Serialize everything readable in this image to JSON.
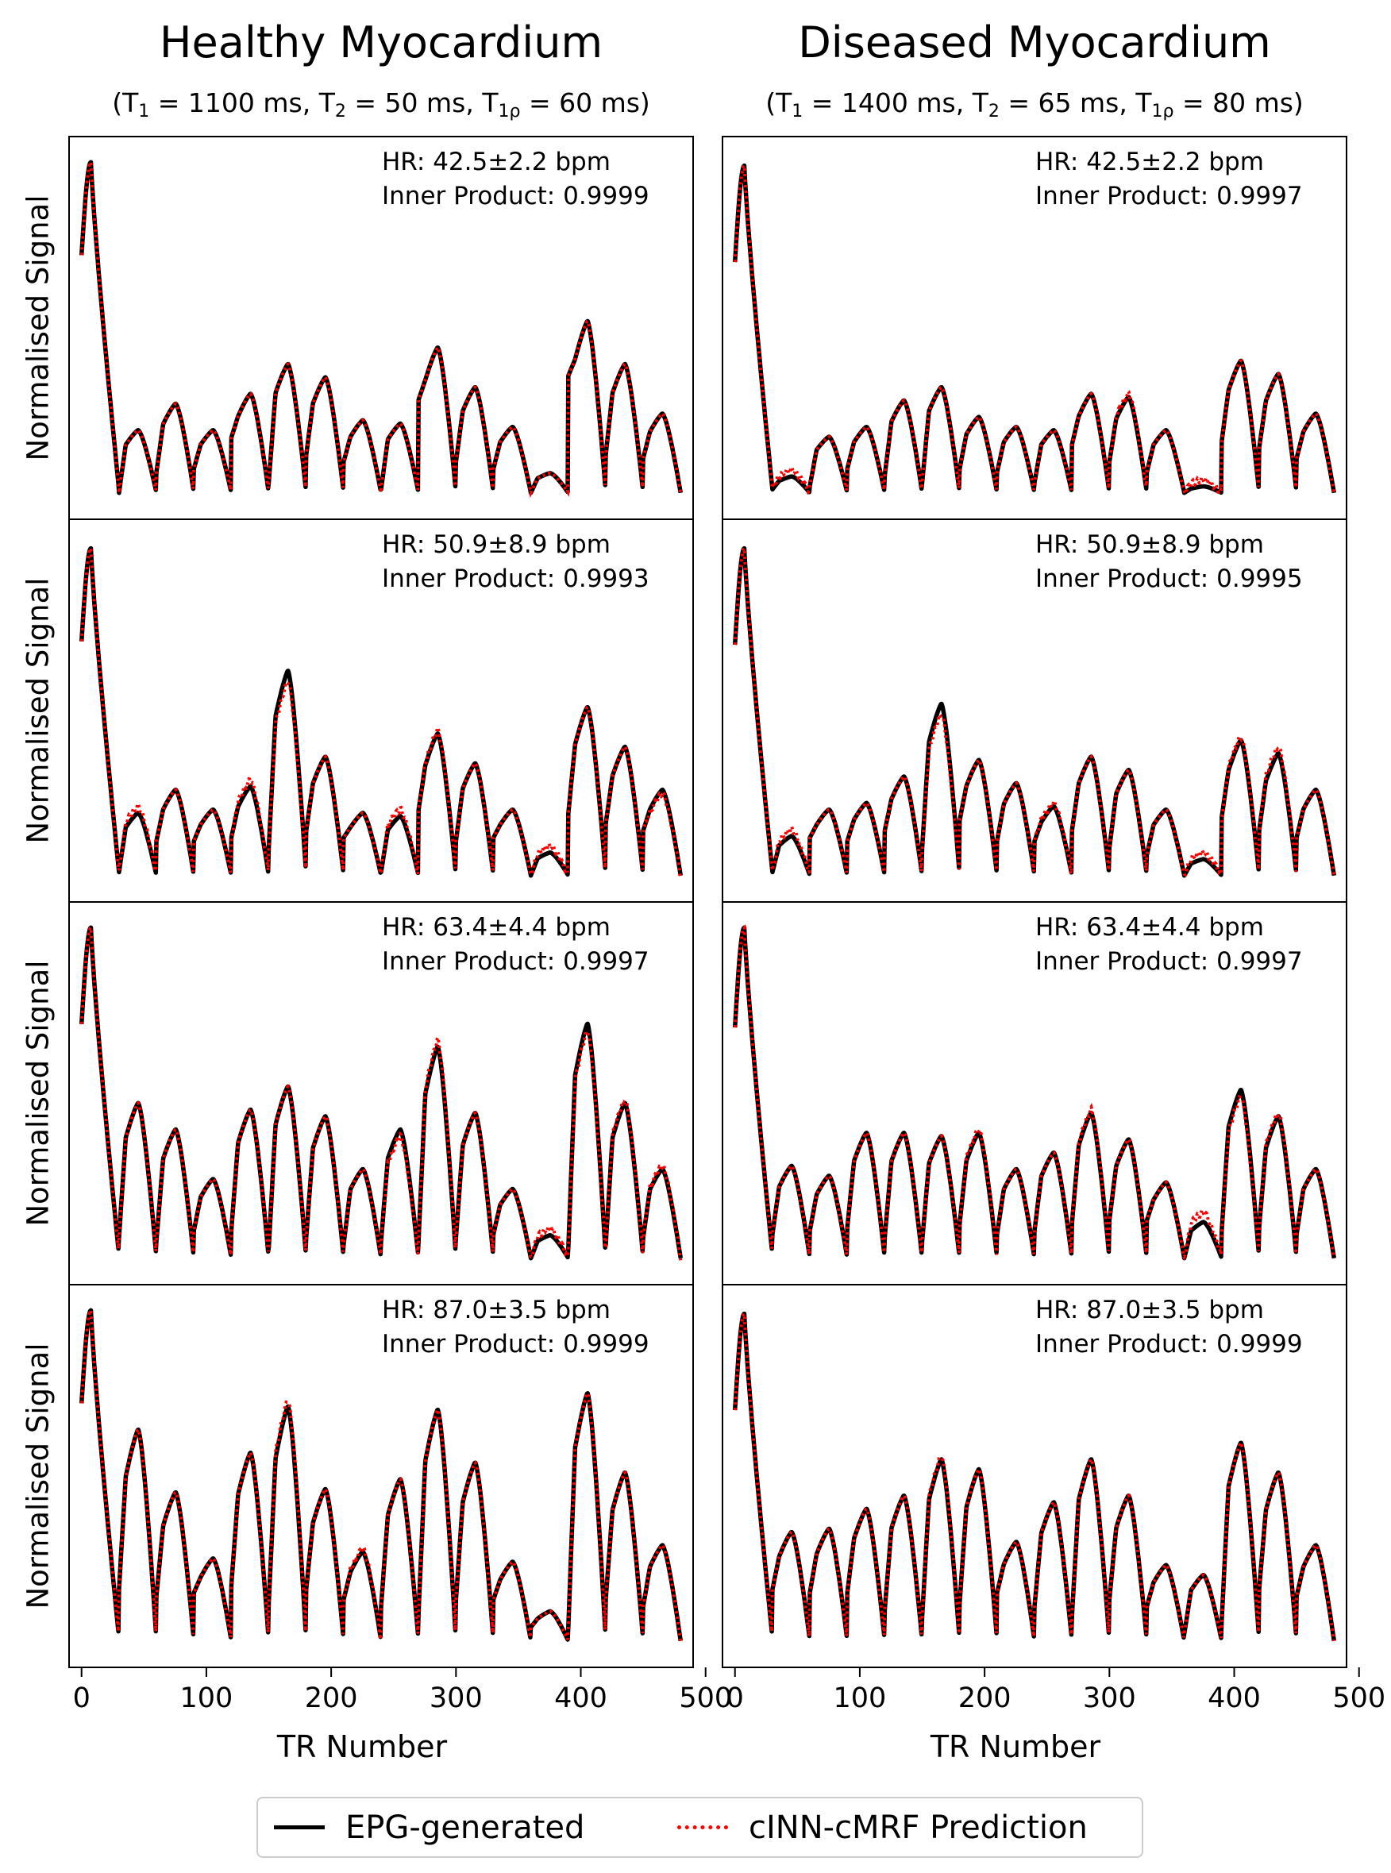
{
  "figure": {
    "columns": [
      {
        "title": "Healthy Myocardium",
        "params": {
          "t1": "1100 ms",
          "t2": "50 ms",
          "t1rho": "60 ms"
        }
      },
      {
        "title": "Diseased Myocardium",
        "params": {
          "t1": "1400 ms",
          "t2": "65 ms",
          "t1rho": "80 ms"
        }
      }
    ],
    "param_labels": {
      "t1": "T",
      "t1_sub": "1",
      "t2": "T",
      "t2_sub": "2",
      "t1rho": "T",
      "t1rho_sub": "1ρ",
      "eq": " = ",
      "open": "(",
      "close": ")",
      "sep": ", "
    }
  },
  "legend": {
    "epg_label": "EPG-generated",
    "cinn_label": "cINN-cMRF Prediction"
  },
  "colors": {
    "epg": "#000000",
    "cinn": "#ff0000",
    "axis": "#000000",
    "legend_border": "#cccccc"
  },
  "chart_data": {
    "type": "line",
    "xlabel": "TR Number",
    "ylabel": "Normalised Signal",
    "xlim": [
      -10,
      490
    ],
    "ylim": [
      0,
      1
    ],
    "xticks": [
      0,
      100,
      200,
      300,
      400,
      500
    ],
    "series_names": [
      "EPG-generated",
      "cINN-cMRF Prediction"
    ],
    "cardiac_cycles": {
      "segment_starts": [
        0,
        30,
        60,
        90,
        120,
        150,
        180,
        210,
        240,
        270,
        300,
        330,
        360,
        390,
        420,
        450
      ],
      "segment_end": 480
    },
    "panels": [
      {
        "row": 0,
        "col": 0,
        "hr": "HR: 42.5±2.2 bpm",
        "inner_product": "Inner Product: 0.9999",
        "seg_peaks": [
          0.97,
          0.2,
          0.28,
          0.2,
          0.31,
          0.4,
          0.36,
          0.23,
          0.22,
          0.45,
          0.33,
          0.21,
          0.07,
          0.53,
          0.4,
          0.25
        ],
        "seg_mins": [
          0.7,
          0.01,
          0.07,
          0.08,
          0.17,
          0.04,
          0.12,
          0.1,
          0.02,
          0.28,
          0.1,
          0.08,
          0.01,
          0.35,
          0.12,
          0.11
        ],
        "pred_dev": [
          0,
          0,
          0,
          0,
          0,
          0,
          0,
          0,
          0,
          0,
          0,
          0,
          0,
          0,
          0,
          0
        ]
      },
      {
        "row": 0,
        "col": 1,
        "hr": "HR: 42.5±2.2 bpm",
        "inner_product": "Inner Product: 0.9997",
        "seg_peaks": [
          0.96,
          0.06,
          0.18,
          0.21,
          0.29,
          0.33,
          0.24,
          0.21,
          0.2,
          0.31,
          0.3,
          0.2,
          0.03,
          0.41,
          0.37,
          0.25
        ],
        "seg_mins": [
          0.68,
          0.02,
          0.03,
          0.08,
          0.06,
          0.04,
          0.08,
          0.07,
          0.04,
          0.15,
          0.1,
          0.07,
          0.01,
          0.16,
          0.14,
          0.11
        ],
        "pred_dev": [
          0,
          0.02,
          0,
          0,
          0,
          0,
          0,
          0,
          0,
          0,
          0.01,
          0,
          0.02,
          0,
          0,
          0
        ]
      },
      {
        "row": 1,
        "col": 0,
        "hr": "HR: 50.9±8.9 bpm",
        "inner_product": "Inner Product: 0.9993",
        "seg_peaks": [
          0.96,
          0.2,
          0.27,
          0.21,
          0.28,
          0.63,
          0.37,
          0.2,
          0.19,
          0.44,
          0.35,
          0.21,
          0.08,
          0.52,
          0.4,
          0.27
        ],
        "seg_mins": [
          0.69,
          0.02,
          0.11,
          0.11,
          0.12,
          0.09,
          0.14,
          0.12,
          0.02,
          0.2,
          0.11,
          0.12,
          0.01,
          0.19,
          0.16,
          0.14
        ],
        "pred_dev": [
          0,
          0.02,
          0,
          0,
          0.02,
          -0.03,
          0,
          0,
          0.02,
          0.01,
          0,
          0,
          0.02,
          0,
          0,
          -0.01
        ]
      },
      {
        "row": 1,
        "col": 1,
        "hr": "HR: 50.9±8.9 bpm",
        "inner_product": "Inner Product: 0.9995",
        "seg_peaks": [
          0.96,
          0.13,
          0.21,
          0.23,
          0.31,
          0.53,
          0.36,
          0.29,
          0.22,
          0.37,
          0.33,
          0.21,
          0.06,
          0.42,
          0.38,
          0.27
        ],
        "seg_mins": [
          0.68,
          0.02,
          0.12,
          0.11,
          0.14,
          0.09,
          0.17,
          0.11,
          0.11,
          0.14,
          0.09,
          0.07,
          0.01,
          0.18,
          0.14,
          0.12
        ],
        "pred_dev": [
          0,
          0.02,
          0,
          0,
          0,
          -0.03,
          0,
          0,
          0.01,
          0,
          0,
          0,
          0.02,
          0.01,
          0.02,
          0
        ]
      },
      {
        "row": 2,
        "col": 0,
        "hr": "HR: 63.4±4.4 bpm",
        "inner_product": "Inner Product: 0.9997",
        "seg_peaks": [
          0.97,
          0.48,
          0.4,
          0.25,
          0.46,
          0.53,
          0.44,
          0.28,
          0.4,
          0.65,
          0.45,
          0.22,
          0.08,
          0.72,
          0.48,
          0.28
        ],
        "seg_mins": [
          0.69,
          0.07,
          0.06,
          0.09,
          0.09,
          0.04,
          0.07,
          0.05,
          0.06,
          0.06,
          0.07,
          0.08,
          0.01,
          0.04,
          0.05,
          0.07
        ],
        "pred_dev": [
          0,
          0,
          0,
          0,
          0,
          0,
          0,
          0,
          -0.02,
          0.02,
          0,
          0,
          0.02,
          -0.02,
          0.01,
          0.01
        ]
      },
      {
        "row": 2,
        "col": 1,
        "hr": "HR: 63.4±4.4 bpm",
        "inner_product": "Inner Product: 0.9997",
        "seg_peaks": [
          0.97,
          0.29,
          0.26,
          0.39,
          0.39,
          0.38,
          0.39,
          0.28,
          0.33,
          0.45,
          0.37,
          0.24,
          0.12,
          0.52,
          0.44,
          0.28
        ],
        "seg_mins": [
          0.68,
          0.08,
          0.09,
          0.1,
          0.07,
          0.06,
          0.11,
          0.08,
          0.09,
          0.11,
          0.12,
          0.12,
          0.01,
          0.09,
          0.1,
          0.08
        ],
        "pred_dev": [
          0,
          0,
          0,
          0,
          0,
          0,
          0.01,
          0,
          0,
          0.01,
          0,
          0,
          0.03,
          -0.02,
          0.01,
          0
        ]
      },
      {
        "row": 3,
        "col": 0,
        "hr": "HR: 87.0±3.5 bpm",
        "inner_product": "Inner Product: 0.9999",
        "seg_peaks": [
          0.97,
          0.65,
          0.46,
          0.26,
          0.58,
          0.72,
          0.47,
          0.28,
          0.5,
          0.71,
          0.55,
          0.25,
          0.1,
          0.76,
          0.52,
          0.3
        ],
        "seg_mins": [
          0.7,
          0.16,
          0.14,
          0.15,
          0.17,
          0.12,
          0.16,
          0.13,
          0.11,
          0.09,
          0.13,
          0.13,
          0.05,
          0.05,
          0.13,
          0.11
        ],
        "pred_dev": [
          0,
          0,
          0,
          0,
          0,
          0.02,
          0,
          0.01,
          0,
          0,
          0,
          0,
          0,
          0,
          0,
          0
        ]
      },
      {
        "row": 3,
        "col": 1,
        "hr": "HR: 87.0±3.5 bpm",
        "inner_product": "Inner Product: 0.9999",
        "seg_peaks": [
          0.96,
          0.34,
          0.35,
          0.41,
          0.45,
          0.56,
          0.53,
          0.31,
          0.43,
          0.56,
          0.45,
          0.24,
          0.21,
          0.61,
          0.52,
          0.3
        ],
        "seg_mins": [
          0.68,
          0.16,
          0.15,
          0.15,
          0.1,
          0.08,
          0.12,
          0.15,
          0.11,
          0.08,
          0.13,
          0.11,
          0.03,
          0.07,
          0.16,
          0.14
        ],
        "pred_dev": [
          0,
          0,
          0,
          0,
          0,
          0.01,
          0,
          0,
          0,
          0,
          0,
          0,
          0,
          0,
          0,
          0
        ]
      }
    ]
  }
}
